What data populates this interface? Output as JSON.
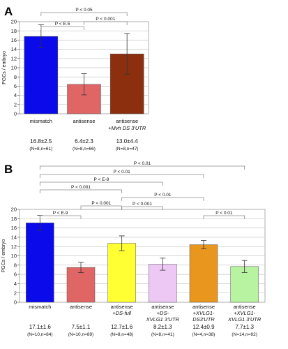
{
  "chart_data": [
    {
      "type": "bar",
      "panel": "A",
      "ylabel": "PGCs / embryo",
      "ylim": [
        0,
        20
      ],
      "yticks": [
        0,
        2,
        4,
        6,
        8,
        10,
        12,
        14,
        16,
        18,
        20
      ],
      "grid": true,
      "categories": [
        {
          "lines": [
            "mismatch"
          ],
          "italic_lines": []
        },
        {
          "lines": [
            "antisense"
          ],
          "italic_lines": []
        },
        {
          "lines": [
            "antisense"
          ],
          "italic_lines": [
            "+Mvh DS 3'UTR"
          ]
        }
      ],
      "values": [
        16.8,
        6.4,
        13.0
      ],
      "errors": [
        2.5,
        2.3,
        4.4
      ],
      "colors": [
        "#0a0aeb",
        "#e06666",
        "#8b2f0f"
      ],
      "value_labels": [
        "16.8±2.5",
        "6.4±2.3",
        "13.0±4.4"
      ],
      "n_labels": [
        "(N=8,n=61)",
        "(N=8,n=66)",
        "(N=8,n=47)"
      ],
      "comparisons": [
        {
          "from": 0,
          "to": 1,
          "label": "P < E-5"
        },
        {
          "from": 1,
          "to": 2,
          "label": "P < 0.001"
        },
        {
          "from": 0,
          "to": 2,
          "label": "P < 0.05"
        }
      ]
    },
    {
      "type": "bar",
      "panel": "B",
      "ylabel": "PGCs / embryo",
      "ylim": [
        0,
        20
      ],
      "yticks": [
        0,
        2,
        4,
        6,
        8,
        10,
        12,
        14,
        16,
        18,
        20
      ],
      "grid": true,
      "categories": [
        {
          "lines": [
            "mismatch"
          ],
          "italic_lines": []
        },
        {
          "lines": [
            "antisense"
          ],
          "italic_lines": []
        },
        {
          "lines": [
            "antisense"
          ],
          "italic_lines": [
            "+DS-full"
          ]
        },
        {
          "lines": [
            "antisense"
          ],
          "italic_lines": [
            "+DS-",
            "XVLG1 3'UTR"
          ]
        },
        {
          "lines": [
            "antisense"
          ],
          "italic_lines": [
            "+XVLG1-",
            "DS3'UTR"
          ]
        },
        {
          "lines": [
            "antisense"
          ],
          "italic_lines": [
            "+XVLG1-",
            "XVLG1 3'UTR"
          ]
        }
      ],
      "values": [
        17.1,
        7.5,
        12.7,
        8.2,
        12.4,
        7.7
      ],
      "errors": [
        1.6,
        1.1,
        1.6,
        1.3,
        0.9,
        1.3
      ],
      "colors": [
        "#0a0aeb",
        "#e06666",
        "#ffff33",
        "#eec8f5",
        "#e8961e",
        "#b7f3a0"
      ],
      "value_labels": [
        "17.1±1.6",
        "7.5±1.1",
        "12.7±1.6",
        "8.2±1.3",
        "12.4±0.9",
        "7.7±1.3"
      ],
      "n_labels": [
        "(N=10,n=84)",
        "(N=10,n=89)",
        "(N=8,n=48)",
        "(N=8,n=41)",
        "(N=4,n=38)",
        "(N=14,n=92)"
      ],
      "comparisons": [
        {
          "from": 0,
          "to": 5,
          "label": "P < 0.01"
        },
        {
          "from": 0,
          "to": 4,
          "label": "P < 0.01"
        },
        {
          "from": 0,
          "to": 3,
          "label": "P < E-8"
        },
        {
          "from": 0,
          "to": 2,
          "label": "P < 0.001"
        },
        {
          "from": 2,
          "to": 4,
          "label": "P < 0.01"
        },
        {
          "from": 1,
          "to": 2,
          "label": "P < 0.001"
        },
        {
          "from": 0,
          "to": 1,
          "label": "P < E-9"
        },
        {
          "from": 2,
          "to": 3,
          "label": "P < 0.001"
        },
        {
          "from": 4,
          "to": 5,
          "label": "P < 0.01"
        }
      ]
    }
  ]
}
